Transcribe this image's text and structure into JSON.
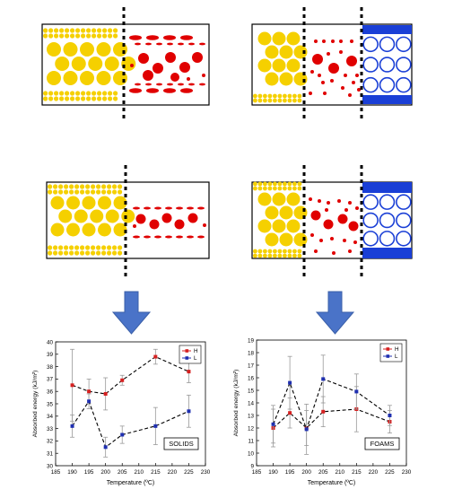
{
  "colors": {
    "yellow": "#f5d000",
    "red": "#e00000",
    "blue": "#1a3fd6",
    "arrow": "#4a73c8",
    "series_h": "#d62020",
    "series_l": "#1f2fb0",
    "error": "#999999"
  },
  "chart_data": [
    {
      "type": "line",
      "title": "",
      "xlabel": "Temperature (ºC)",
      "ylabel": "Absorbed energy (kJ/m²)",
      "annotation": "SOLIDS",
      "xlim": [
        185,
        230
      ],
      "ylim": [
        30,
        40
      ],
      "x_ticks": [
        185,
        190,
        195,
        200,
        205,
        210,
        215,
        220,
        225,
        230
      ],
      "y_ticks": [
        30,
        31,
        32,
        33,
        34,
        35,
        36,
        37,
        38,
        39,
        40
      ],
      "legend_position": "top-right",
      "grid": false,
      "series": [
        {
          "name": "H",
          "color": "#d62020",
          "points": [
            {
              "x": 190,
              "y": 36.5,
              "err": 2.9
            },
            {
              "x": 195,
              "y": 36.0,
              "err": 1.0
            },
            {
              "x": 200,
              "y": 35.8,
              "err": 1.3
            },
            {
              "x": 205,
              "y": 36.9,
              "err": 0.4
            },
            {
              "x": 215,
              "y": 38.8,
              "err": 0.6
            },
            {
              "x": 225,
              "y": 37.6,
              "err": 0.9
            }
          ]
        },
        {
          "name": "L",
          "color": "#1f2fb0",
          "points": [
            {
              "x": 190,
              "y": 33.2,
              "err": 0.9
            },
            {
              "x": 195,
              "y": 35.2,
              "err": 0.6
            },
            {
              "x": 200,
              "y": 31.5,
              "err": 0.8
            },
            {
              "x": 205,
              "y": 32.5,
              "err": 0.7
            },
            {
              "x": 215,
              "y": 33.2,
              "err": 1.5
            },
            {
              "x": 225,
              "y": 34.4,
              "err": 1.3
            }
          ]
        }
      ]
    },
    {
      "type": "line",
      "title": "",
      "xlabel": "Temperature (ºC)",
      "ylabel": "Absorbed energy (kJ/m²)",
      "annotation": "FOAMS",
      "xlim": [
        185,
        230
      ],
      "ylim": [
        9,
        19
      ],
      "x_ticks": [
        185,
        190,
        195,
        200,
        205,
        210,
        215,
        220,
        225,
        230
      ],
      "y_ticks": [
        9,
        10,
        11,
        12,
        13,
        14,
        15,
        16,
        17,
        18,
        19
      ],
      "legend_position": "top-right",
      "grid": false,
      "series": [
        {
          "name": "H",
          "color": "#d62020",
          "points": [
            {
              "x": 190,
              "y": 12.0,
              "err": 1.5
            },
            {
              "x": 195,
              "y": 13.2,
              "err": 1.2
            },
            {
              "x": 200,
              "y": 12.0,
              "err": 1.4
            },
            {
              "x": 205,
              "y": 13.3,
              "err": 1.2
            },
            {
              "x": 215,
              "y": 13.5,
              "err": 1.8
            },
            {
              "x": 225,
              "y": 12.5,
              "err": 0.9
            }
          ]
        },
        {
          "name": "L",
          "color": "#1f2fb0",
          "points": [
            {
              "x": 190,
              "y": 12.3,
              "err": 1.5
            },
            {
              "x": 195,
              "y": 15.6,
              "err": 2.1
            },
            {
              "x": 200,
              "y": 11.9,
              "err": 2.0
            },
            {
              "x": 205,
              "y": 15.9,
              "err": 1.9
            },
            {
              "x": 215,
              "y": 14.9,
              "err": 1.4
            },
            {
              "x": 225,
              "y": 13.0,
              "err": 0.8
            }
          ]
        }
      ]
    }
  ]
}
